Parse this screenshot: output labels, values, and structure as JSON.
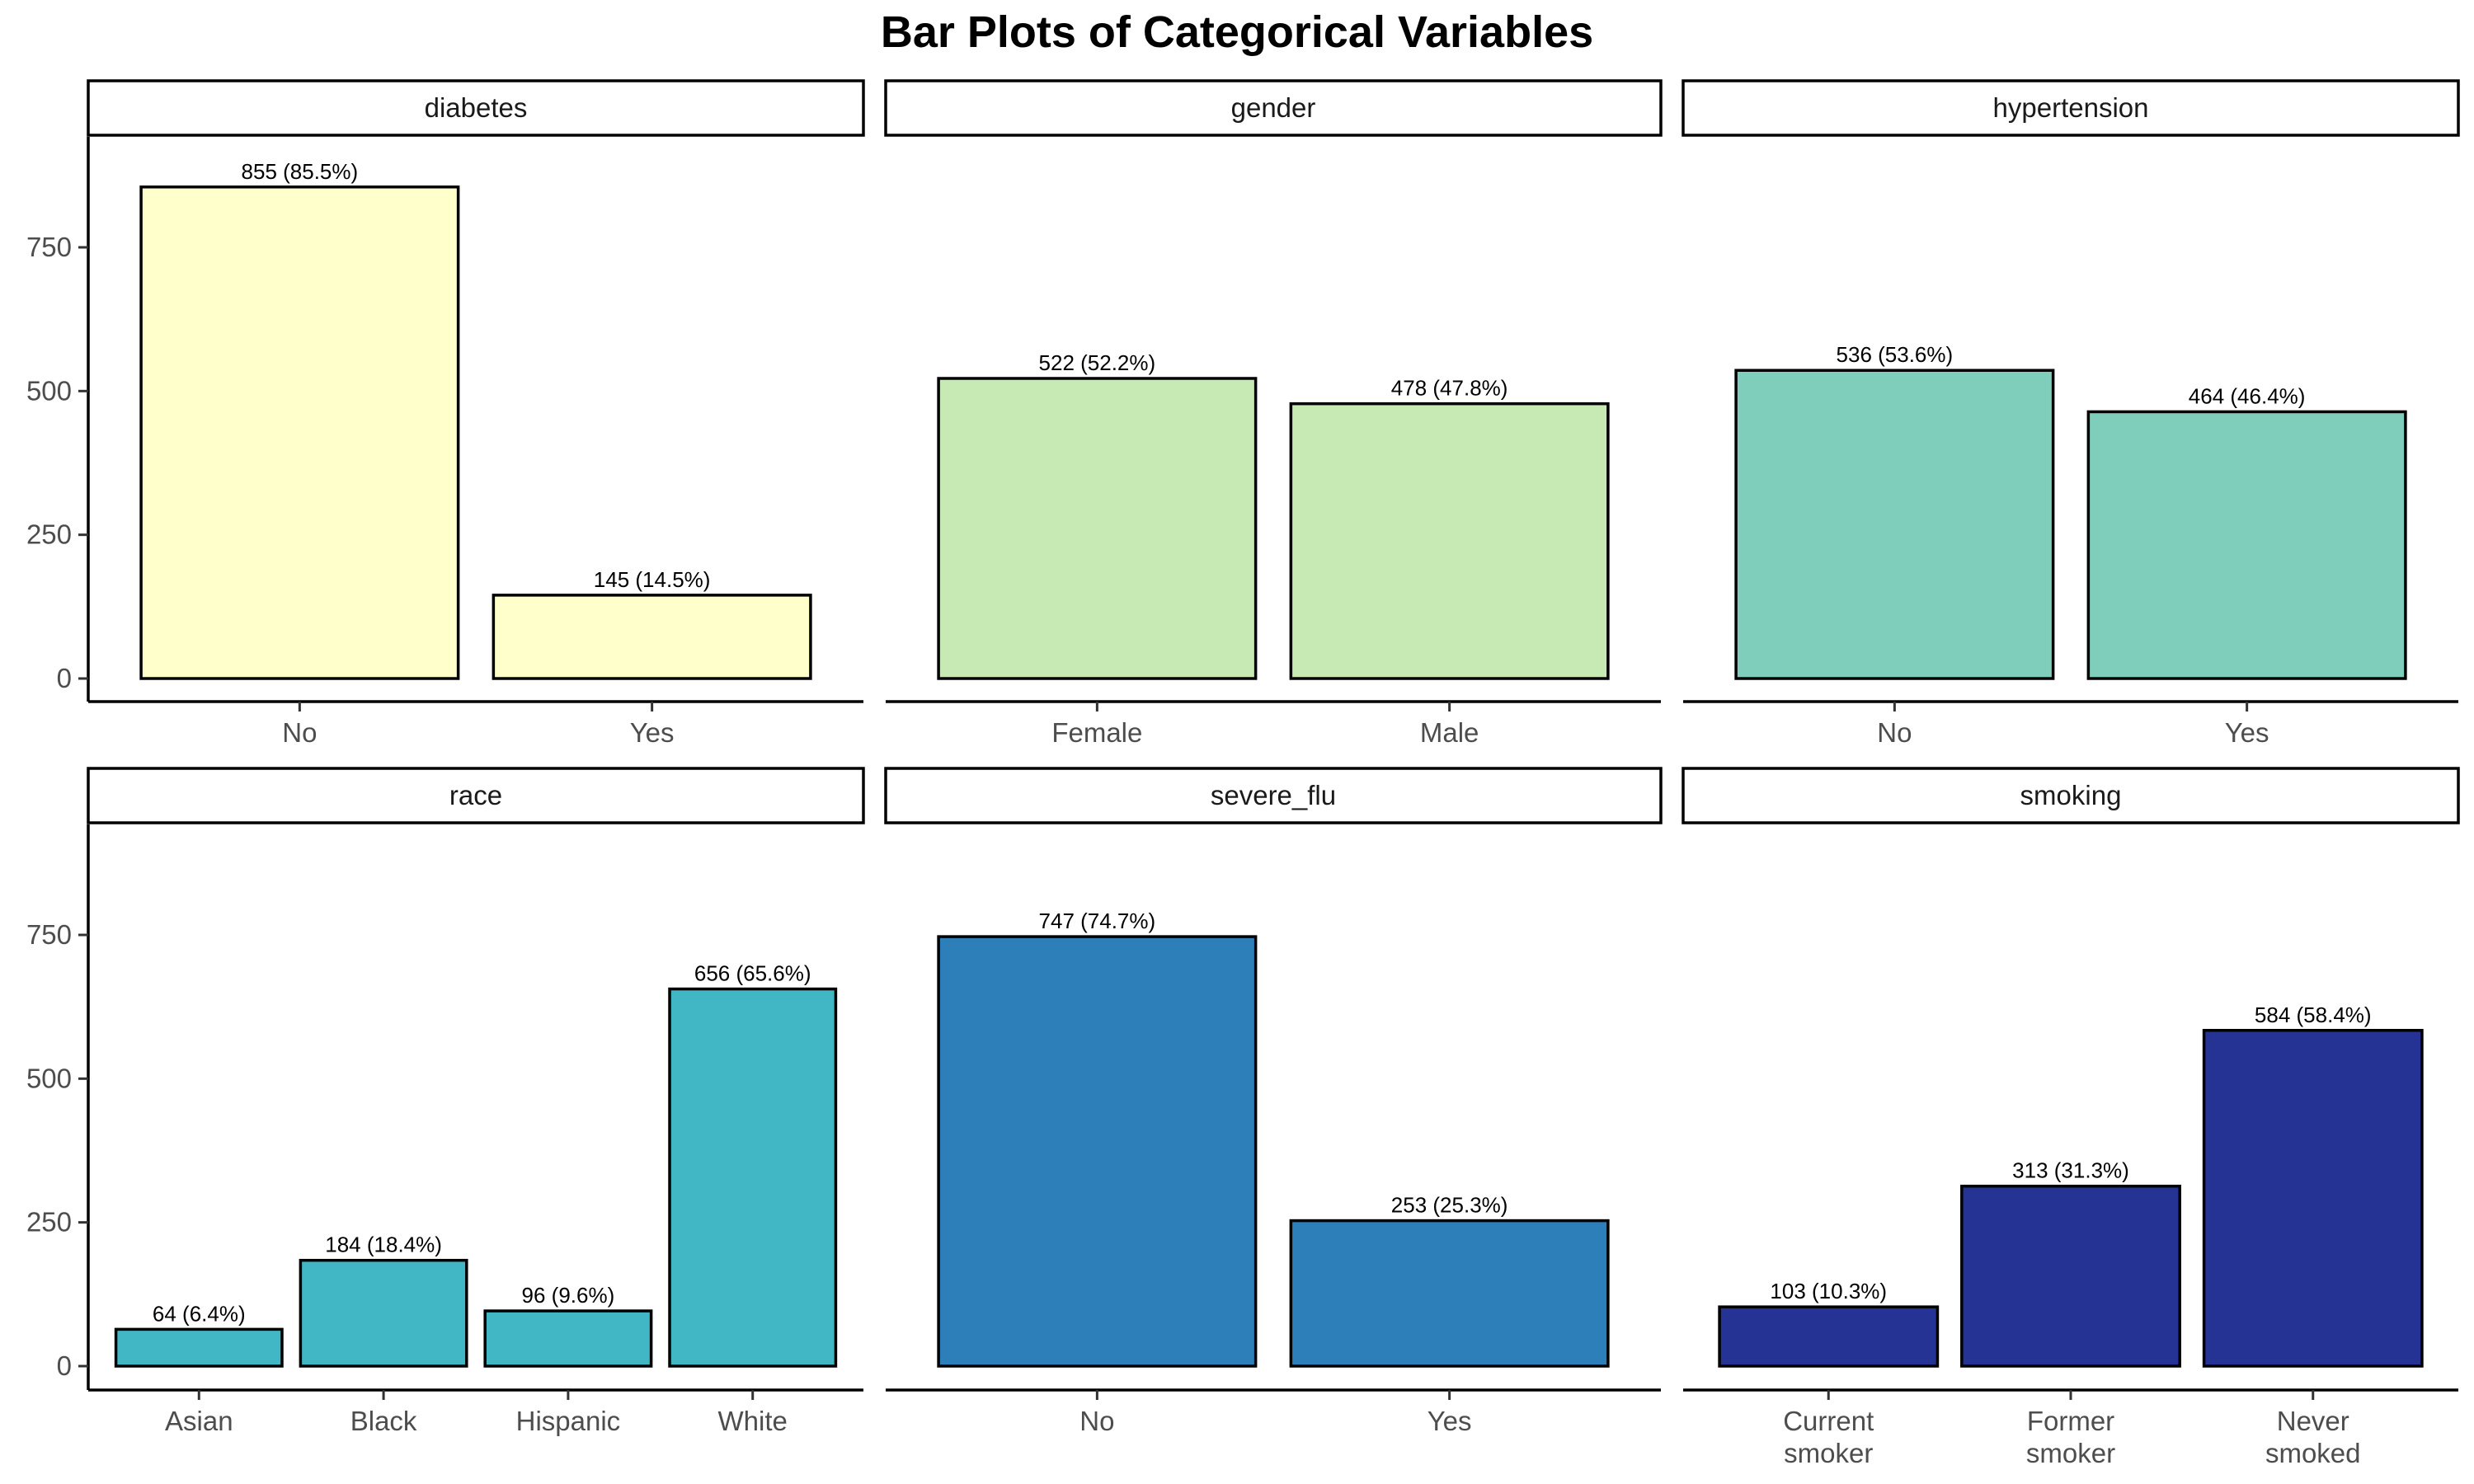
{
  "title": "Bar Plots of Categorical Variables",
  "chart_data": {
    "type": "bar",
    "title": "Bar Plots of Categorical Variables",
    "xlabel": "",
    "ylabel": "",
    "ylim": [
      0,
      940
    ],
    "yticks": [
      0,
      250,
      500,
      750
    ],
    "bar_outline_color": "#000000",
    "panels": [
      {
        "name": "diabetes",
        "color": "#FFFFCC",
        "categories": [
          "No",
          "Yes"
        ],
        "values": [
          855,
          145
        ],
        "labels": [
          "855 (85.5%)",
          "145 (14.5%)"
        ]
      },
      {
        "name": "gender",
        "color": "#C7E9B4",
        "categories": [
          "Female",
          "Male"
        ],
        "values": [
          522,
          478
        ],
        "labels": [
          "522 (52.2%)",
          "478 (47.8%)"
        ]
      },
      {
        "name": "hypertension",
        "color": "#7FCDBB",
        "categories": [
          "No",
          "Yes"
        ],
        "values": [
          536,
          464
        ],
        "labels": [
          "536 (53.6%)",
          "464 (46.4%)"
        ]
      },
      {
        "name": "race",
        "color": "#41B6C4",
        "categories": [
          "Asian",
          "Black",
          "Hispanic",
          "White"
        ],
        "values": [
          64,
          184,
          96,
          656
        ],
        "labels": [
          "64 (6.4%)",
          "184 (18.4%)",
          "96 (9.6%)",
          "656 (65.6%)"
        ]
      },
      {
        "name": "severe_flu",
        "color": "#2C7FB8",
        "categories": [
          "No",
          "Yes"
        ],
        "values": [
          747,
          253
        ],
        "labels": [
          "747 (74.7%)",
          "253 (25.3%)"
        ]
      },
      {
        "name": "smoking",
        "color": "#253494",
        "categories": [
          "Current\nsmoker",
          "Former\nsmoker",
          "Never\nsmoked"
        ],
        "values": [
          103,
          313,
          584
        ],
        "labels": [
          "103 (10.3%)",
          "313 (31.3%)",
          "584 (58.4%)"
        ]
      }
    ]
  }
}
